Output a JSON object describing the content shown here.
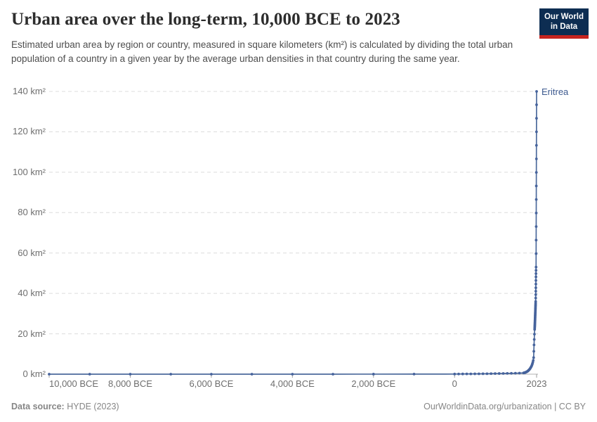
{
  "header": {
    "title": "Urban area over the long-term, 10,000 BCE to 2023",
    "subtitle": "Estimated urban area by region or country, measured in square kilometers (km²) is calculated by dividing the total urban population of a country in a given year by the average urban densities in that country during the same year."
  },
  "logo": {
    "line1": "Our World",
    "line2": "in Data",
    "bg_color": "#0d2d52",
    "bar_color": "#c6241f"
  },
  "footer": {
    "source_label": "Data source:",
    "source_value": "HYDE (2023)",
    "credit": "OurWorldinData.org/urbanization | CC BY"
  },
  "colors": {
    "line": "#4c6a9c",
    "marker": "#46639c",
    "entity_label": "#3d5a8f",
    "grid": "#dcdcdc",
    "axis": "#b0b0b0",
    "tick": "#9e9e9e",
    "axis_text": "#6e6e6e"
  },
  "chart_data": {
    "type": "line",
    "title": "Urban area over the long-term, 10,000 BCE to 2023",
    "xlabel": "",
    "ylabel": "km²",
    "xlim": [
      -10000,
      2023
    ],
    "ylim": [
      0,
      140
    ],
    "grid": "horizontal-dashed",
    "legend_position": "end-of-line",
    "y_ticks": [
      {
        "value": 0,
        "label": "0 km²"
      },
      {
        "value": 20,
        "label": "20 km²"
      },
      {
        "value": 40,
        "label": "40 km²"
      },
      {
        "value": 60,
        "label": "60 km²"
      },
      {
        "value": 80,
        "label": "80 km²"
      },
      {
        "value": 100,
        "label": "100 km²"
      },
      {
        "value": 120,
        "label": "120 km²"
      },
      {
        "value": 140,
        "label": "140 km²"
      }
    ],
    "x_ticks": [
      {
        "year": -10000,
        "label": "10,000 BCE",
        "align": "start"
      },
      {
        "year": -8000,
        "label": "8,000 BCE",
        "align": "center"
      },
      {
        "year": -6000,
        "label": "6,000 BCE",
        "align": "center"
      },
      {
        "year": -4000,
        "label": "4,000 BCE",
        "align": "center"
      },
      {
        "year": -2000,
        "label": "2,000 BCE",
        "align": "center"
      },
      {
        "year": 0,
        "label": "0",
        "align": "center"
      },
      {
        "year": 2023,
        "label": "2023",
        "align": "center"
      }
    ],
    "series": [
      {
        "name": "Eritrea",
        "unit": "km²",
        "points": [
          [
            -10000,
            0
          ],
          [
            -9000,
            0
          ],
          [
            -8000,
            0
          ],
          [
            -7000,
            0
          ],
          [
            -6000,
            0
          ],
          [
            -5000,
            0
          ],
          [
            -4000,
            0
          ],
          [
            -3000,
            0.01
          ],
          [
            -2000,
            0.02
          ],
          [
            -1000,
            0.04
          ],
          [
            0,
            0.06
          ],
          [
            100,
            0.08
          ],
          [
            200,
            0.1
          ],
          [
            300,
            0.12
          ],
          [
            400,
            0.14
          ],
          [
            500,
            0.16
          ],
          [
            600,
            0.18
          ],
          [
            700,
            0.2
          ],
          [
            800,
            0.23
          ],
          [
            900,
            0.26
          ],
          [
            1000,
            0.29
          ],
          [
            1100,
            0.32
          ],
          [
            1200,
            0.35
          ],
          [
            1300,
            0.38
          ],
          [
            1400,
            0.42
          ],
          [
            1500,
            0.46
          ],
          [
            1600,
            0.52
          ],
          [
            1700,
            0.6
          ],
          [
            1710,
            0.65
          ],
          [
            1720,
            0.7
          ],
          [
            1730,
            0.76
          ],
          [
            1740,
            0.82
          ],
          [
            1750,
            0.9
          ],
          [
            1760,
            1.0
          ],
          [
            1770,
            1.1
          ],
          [
            1780,
            1.2
          ],
          [
            1790,
            1.3
          ],
          [
            1800,
            1.45
          ],
          [
            1810,
            1.6
          ],
          [
            1820,
            1.8
          ],
          [
            1830,
            2.0
          ],
          [
            1840,
            2.2
          ],
          [
            1850,
            2.45
          ],
          [
            1860,
            2.7
          ],
          [
            1870,
            3.0
          ],
          [
            1880,
            3.35
          ],
          [
            1890,
            3.7
          ],
          [
            1900,
            4.1
          ],
          [
            1910,
            4.6
          ],
          [
            1920,
            5.2
          ],
          [
            1930,
            5.9
          ],
          [
            1940,
            6.8
          ],
          [
            1950,
            8.2
          ],
          [
            1955,
            11.3
          ],
          [
            1960,
            14.5
          ],
          [
            1965,
            17.2
          ],
          [
            1970,
            19.8
          ],
          [
            1975,
            22.1
          ],
          [
            1976,
            22.6
          ],
          [
            1977,
            23.1
          ],
          [
            1978,
            23.6
          ],
          [
            1979,
            24.1
          ],
          [
            1980,
            24.6
          ],
          [
            1981,
            25.1
          ],
          [
            1982,
            25.6
          ],
          [
            1983,
            26.1
          ],
          [
            1984,
            26.6
          ],
          [
            1985,
            27.1
          ],
          [
            1986,
            27.7
          ],
          [
            1987,
            28.2
          ],
          [
            1988,
            28.8
          ],
          [
            1989,
            29.3
          ],
          [
            1990,
            29.9
          ],
          [
            1991,
            30.4
          ],
          [
            1992,
            31.0
          ],
          [
            1993,
            31.5
          ],
          [
            1994,
            32.1
          ],
          [
            1995,
            32.7
          ],
          [
            1996,
            33.3
          ],
          [
            1997,
            33.9
          ],
          [
            1998,
            34.5
          ],
          [
            1999,
            35.2
          ],
          [
            2000,
            36.0
          ],
          [
            2001,
            37.7
          ],
          [
            2002,
            39.4
          ],
          [
            2003,
            41.1
          ],
          [
            2004,
            42.8
          ],
          [
            2005,
            44.6
          ],
          [
            2006,
            46.4
          ],
          [
            2007,
            48.2
          ],
          [
            2008,
            49.8
          ],
          [
            2009,
            51.4
          ],
          [
            2010,
            53.0
          ],
          [
            2011,
            59.7
          ],
          [
            2012,
            66.4
          ],
          [
            2013,
            73.1
          ],
          [
            2014,
            79.8
          ],
          [
            2015,
            86.5
          ],
          [
            2016,
            93.2
          ],
          [
            2017,
            99.9
          ],
          [
            2018,
            106.6
          ],
          [
            2019,
            113.3
          ],
          [
            2020,
            120.0
          ],
          [
            2021,
            126.7
          ],
          [
            2022,
            133.4
          ],
          [
            2023,
            140.0
          ]
        ]
      }
    ]
  }
}
